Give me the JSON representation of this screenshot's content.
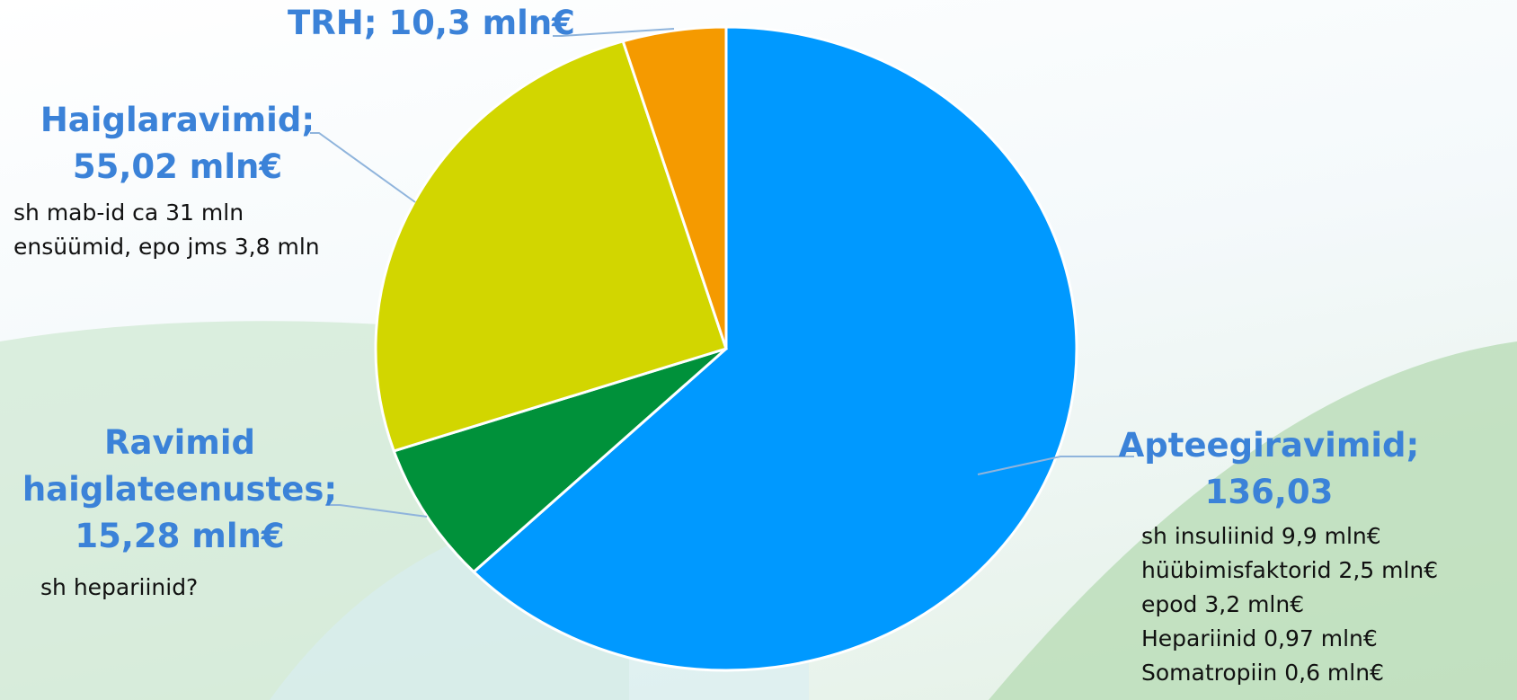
{
  "chart_data": {
    "type": "pie",
    "categories": [
      "Apteegiravimid;",
      "Ravimid haiglateenustes;",
      "Haiglaravimid;",
      "TRH;"
    ],
    "values": [
      136.03,
      15.28,
      55.02,
      10.3
    ],
    "value_labels": [
      "136,03",
      "15,28 mln€",
      "55,02 mln€",
      "10,3 mln€"
    ],
    "colors": [
      "#0099ff",
      "#00913a",
      "#d2d600",
      "#f59a00"
    ],
    "notes": [
      [
        "sh insuliinid 9,9 mln€",
        "hüübimisfaktorid 2,5 mln€",
        "epod 3,2 mln€",
        "Hepariinid 0,97 mln€",
        "Somatropiin 0,6 mln€"
      ],
      [
        "sh hepariinid?"
      ],
      [
        "sh mab-id ca 31 mln",
        "ensüümid, epo jms 3,8 mln"
      ],
      []
    ]
  }
}
